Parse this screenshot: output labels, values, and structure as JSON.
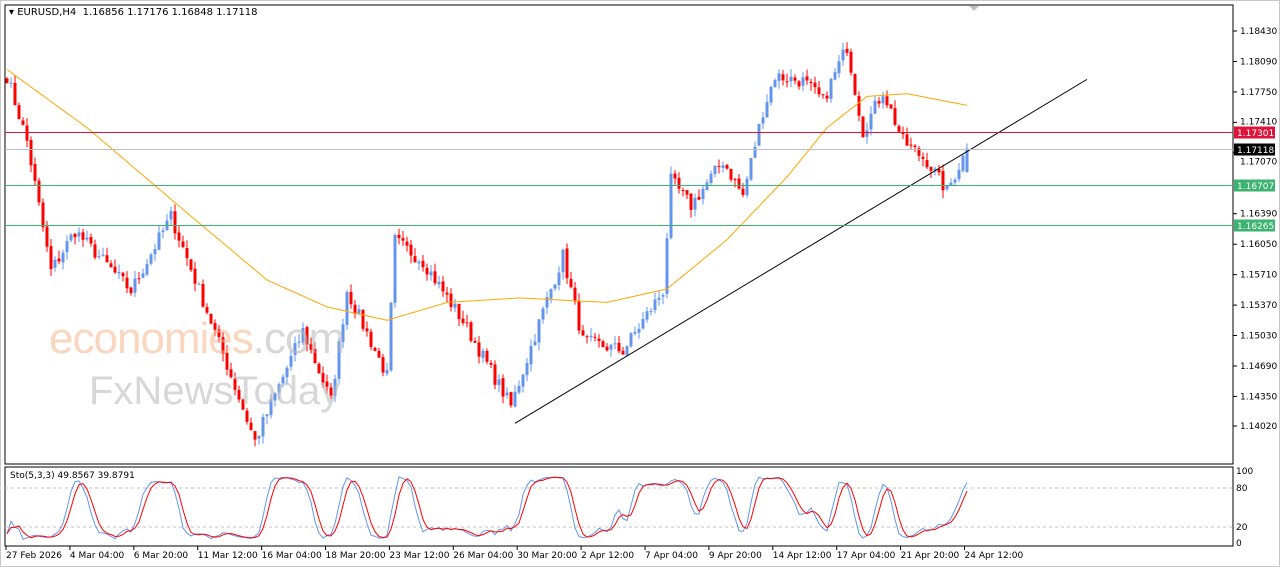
{
  "header": {
    "symbol": "EURUSD,H4",
    "ohlc": "1.16856 1.17176 1.16848 1.17118"
  },
  "stoch": {
    "label": "Sto(5,3,3) 49.8567 39.8791",
    "levels": [
      "100",
      "80",
      "20",
      "0"
    ]
  },
  "watermark": {
    "line1a": "economies",
    "line1b": ".com",
    "line2": "FxNewsToday"
  },
  "colors": {
    "bull": "#6495ed",
    "bear": "#ff0000",
    "ma": "#ffa500",
    "k": "#6495ed",
    "d": "#ff0000",
    "resist": "#dc143c",
    "support": "#3cb371",
    "current": "#c0c0c0"
  },
  "price_axis": {
    "min": 1.1384,
    "max": 1.1893,
    "labels": [
      "1.18430",
      "1.18090",
      "1.17750",
      "1.17410",
      "1.17070",
      "1.16390",
      "1.16050",
      "1.15710",
      "1.15370",
      "1.15030",
      "1.14690",
      "1.14350",
      "1.14020"
    ]
  },
  "levels": [
    {
      "price": 1.17301,
      "label": "1.17301",
      "kind": "resist"
    },
    {
      "price": 1.17118,
      "label": "1.17118",
      "kind": "current"
    },
    {
      "price": 1.16707,
      "label": "1.16707",
      "kind": "support"
    },
    {
      "price": 1.16265,
      "label": "1.16265",
      "kind": "support"
    }
  ],
  "time_axis": [
    "27 Feb 2026",
    "4 Mar 04:00",
    "6 Mar 20:00",
    "11 Mar 12:00",
    "16 Mar 04:00",
    "18 Mar 20:00",
    "23 Mar 12:00",
    "26 Mar 04:00",
    "30 Mar 20:00",
    "2 Apr 12:00",
    "7 Apr 04:00",
    "9 Apr 20:00",
    "14 Apr 12:00",
    "17 Apr 04:00",
    "21 Apr 20:00",
    "24 Apr 12:00"
  ],
  "bars_total": 241,
  "close_waypoints": [
    [
      0,
      1.1793
    ],
    [
      5,
      1.172
    ],
    [
      11,
      1.1575
    ],
    [
      17,
      1.162
    ],
    [
      31,
      1.1553
    ],
    [
      41,
      1.1636
    ],
    [
      51,
      1.1519
    ],
    [
      62,
      1.1385
    ],
    [
      74,
      1.1508
    ],
    [
      81,
      1.143
    ],
    [
      85,
      1.1553
    ],
    [
      95,
      1.1458
    ],
    [
      97,
      1.1609
    ],
    [
      104,
      1.1586
    ],
    [
      114,
      1.1519
    ],
    [
      126,
      1.1424
    ],
    [
      134,
      1.153
    ],
    [
      139,
      1.1592
    ],
    [
      144,
      1.1497
    ],
    [
      154,
      1.1486
    ],
    [
      164,
      1.1553
    ],
    [
      166,
      1.1676
    ],
    [
      171,
      1.1648
    ],
    [
      179,
      1.1698
    ],
    [
      184,
      1.1659
    ],
    [
      189,
      1.1754
    ],
    [
      192,
      1.1793
    ],
    [
      199,
      1.1787
    ],
    [
      204,
      1.1765
    ],
    [
      210,
      1.1826
    ],
    [
      214,
      1.1731
    ],
    [
      219,
      1.1776
    ],
    [
      224,
      1.172
    ],
    [
      230,
      1.1698
    ],
    [
      235,
      1.1664
    ],
    [
      240,
      1.17118
    ]
  ],
  "ma_waypoints": [
    [
      0,
      1.18
    ],
    [
      20,
      1.1735
    ],
    [
      45,
      1.164
    ],
    [
      65,
      1.1565
    ],
    [
      80,
      1.1535
    ],
    [
      95,
      1.152
    ],
    [
      110,
      1.154
    ],
    [
      128,
      1.1545
    ],
    [
      150,
      1.154
    ],
    [
      165,
      1.1555
    ],
    [
      180,
      1.161
    ],
    [
      195,
      1.168
    ],
    [
      205,
      1.1735
    ],
    [
      215,
      1.177
    ],
    [
      225,
      1.1773
    ],
    [
      240,
      1.176
    ]
  ],
  "trendline": [
    [
      127,
      1.1405
    ],
    [
      270,
      1.1789
    ]
  ]
}
